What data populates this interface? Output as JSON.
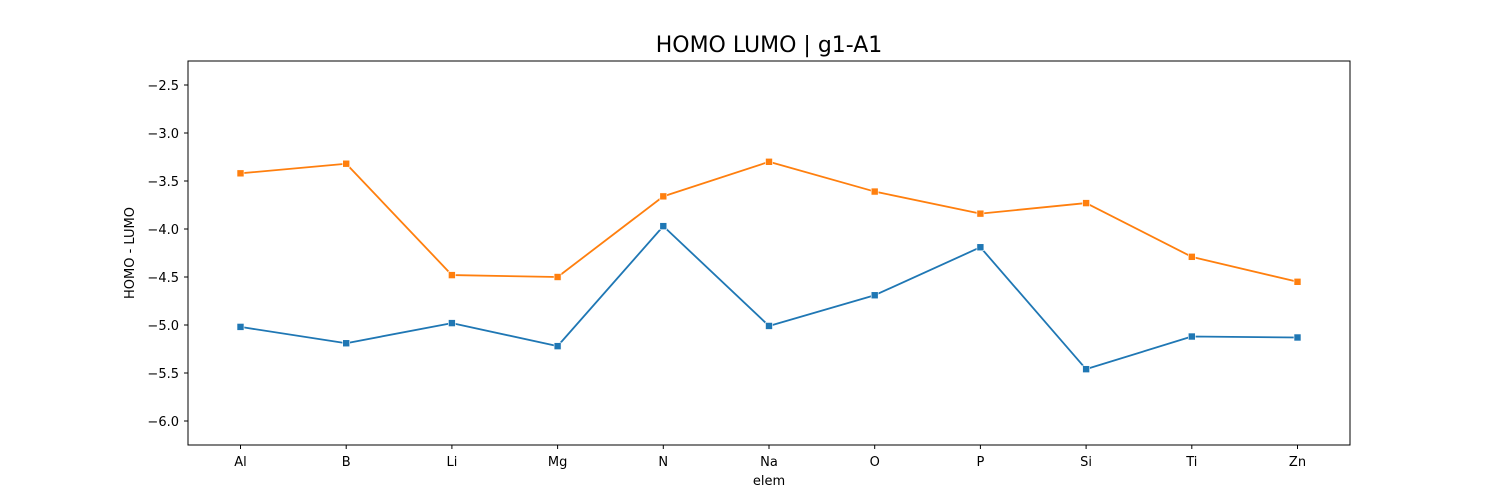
{
  "chart_data": {
    "type": "line",
    "title": "HOMO LUMO | g1-A1",
    "xlabel": "elem",
    "ylabel": "HOMO - LUMO",
    "categories": [
      "Al",
      "B",
      "Li",
      "Mg",
      "N",
      "Na",
      "O",
      "P",
      "Si",
      "Ti",
      "Zn"
    ],
    "ylim": [
      -6.25,
      -2.25
    ],
    "yticks": [
      -6.0,
      -5.5,
      -5.0,
      -4.5,
      -4.0,
      -3.5,
      -3.0,
      -2.5
    ],
    "ytick_labels": [
      "−6.0",
      "−5.5",
      "−5.0",
      "−4.5",
      "−4.0",
      "−3.5",
      "−3.0",
      "−2.5"
    ],
    "grid": false,
    "marker": "square",
    "series": [
      {
        "color": "#1f77b4",
        "values": [
          -5.02,
          -5.19,
          -4.98,
          -5.22,
          -3.97,
          -5.01,
          -4.69,
          -4.19,
          -5.46,
          -5.12,
          -5.13
        ]
      },
      {
        "color": "#ff7f0e",
        "values": [
          -3.42,
          -3.32,
          -4.48,
          -4.5,
          -3.66,
          -3.3,
          -3.61,
          -3.84,
          -3.73,
          -4.29,
          -4.55
        ]
      }
    ]
  }
}
